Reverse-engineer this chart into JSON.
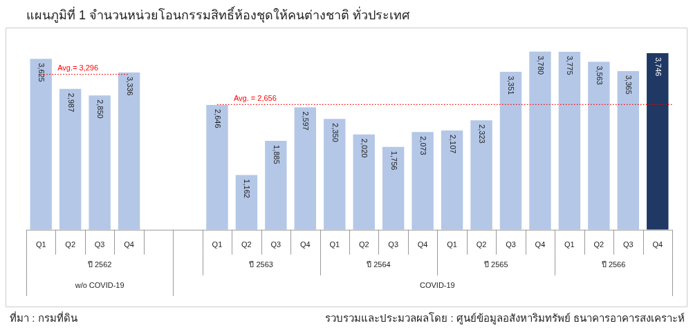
{
  "chart_data": {
    "type": "bar",
    "title": "แผนภูมิที่ 1 จำนวนหน่วยโอนกรรมสิทธิ์ห้องชุดให้คนต่างชาติ ทั่วประเทศ",
    "categories": [
      "Q1",
      "Q2",
      "Q3",
      "Q4",
      null,
      null,
      "Q1",
      "Q2",
      "Q3",
      "Q4",
      "Q1",
      "Q2",
      "Q3",
      "Q4",
      "Q1",
      "Q2",
      "Q3",
      "Q4",
      "Q1",
      "Q2",
      "Q3",
      "Q4"
    ],
    "values": [
      3625,
      2987,
      2850,
      3336,
      null,
      null,
      2646,
      1162,
      1885,
      2597,
      2350,
      2020,
      1756,
      2073,
      2107,
      2323,
      3351,
      3780,
      3775,
      3563,
      3365,
      3746
    ],
    "colors": [
      "#b4c7e7",
      "#b4c7e7",
      "#b4c7e7",
      "#b4c7e7",
      null,
      null,
      "#b4c7e7",
      "#b4c7e7",
      "#b4c7e7",
      "#b4c7e7",
      "#b4c7e7",
      "#b4c7e7",
      "#b4c7e7",
      "#b4c7e7",
      "#b4c7e7",
      "#b4c7e7",
      "#b4c7e7",
      "#b4c7e7",
      "#b4c7e7",
      "#b4c7e7",
      "#b4c7e7",
      "#1f3864"
    ],
    "value_labels": [
      "3,625",
      "2,987",
      "2,850",
      "3,336",
      null,
      null,
      "2,646",
      "1,162",
      "1,885",
      "2,597",
      "2,350",
      "2,020",
      "1,756",
      "2,073",
      "2,107",
      "2,323",
      "3,351",
      "3,780",
      "3,775",
      "3,563",
      "3,365",
      "3,746"
    ],
    "ref_lines": [
      {
        "axis": "y",
        "value": 3296,
        "label": "Avg.= 3,296",
        "color": "#ff0000",
        "line_style": "dotted"
      },
      {
        "axis": "y",
        "value": 2656,
        "label": "Avg. = 2,656",
        "color": "#ff0000",
        "line_style": "dotted"
      }
    ],
    "annotations": [
      "ปี 2562",
      "ปี 2563",
      "ปี 2564",
      "ปี 2565",
      "ปี 2566",
      "w/o COVID-19",
      "COVID-19",
      "ที่มา : กรมที่ดิน",
      "รวบรวมและประมวลผลโดย : ศูนย์ข้อมูลอสังหาริมทรัพย์ ธนาคารอาคารสงเคราะห์"
    ],
    "grid": false,
    "legend": false
  }
}
